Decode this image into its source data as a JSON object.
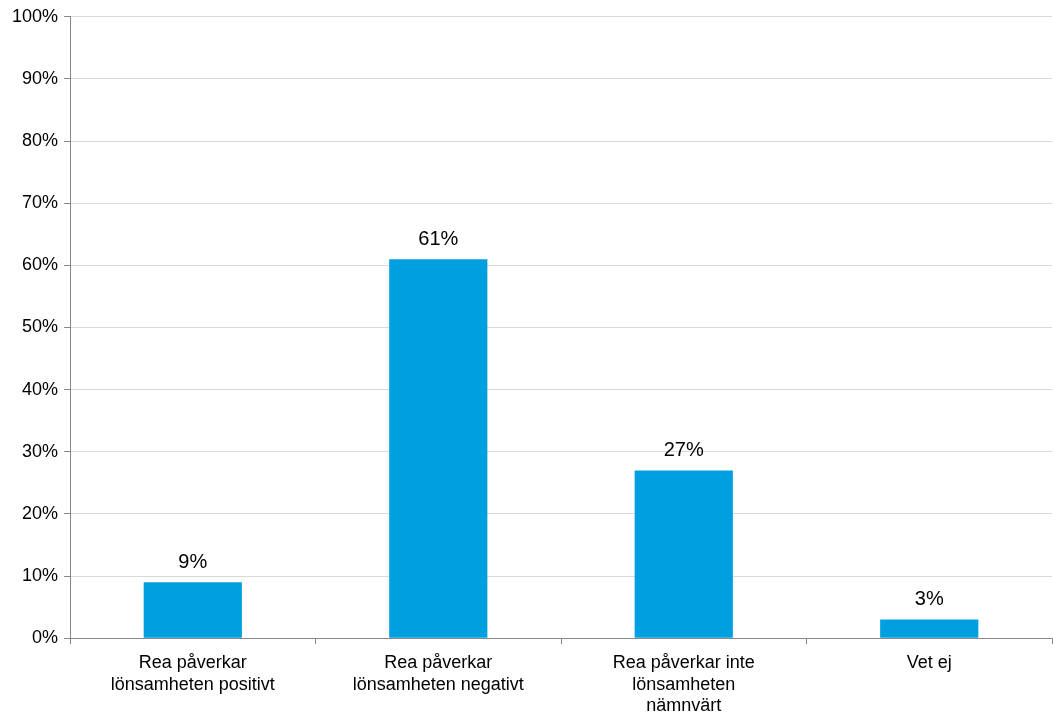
{
  "chart_data": {
    "type": "bar",
    "categories": [
      "Rea påverkar lönsamheten positivt",
      "Rea påverkar lönsamheten negativt",
      "Rea påverkar inte lönsamheten nämnvärt",
      "Vet ej"
    ],
    "values": [
      9,
      61,
      27,
      3
    ],
    "color": "#009fdf",
    "value_labels": [
      "9%",
      "61%",
      "27%",
      "3%"
    ],
    "ylim": [
      0,
      100
    ],
    "yticks": [
      {
        "value": 0,
        "label": "0%"
      },
      {
        "value": 10,
        "label": "10%"
      },
      {
        "value": 20,
        "label": "20%"
      },
      {
        "value": 30,
        "label": "30%"
      },
      {
        "value": 40,
        "label": "40%"
      },
      {
        "value": 50,
        "label": "50%"
      },
      {
        "value": 60,
        "label": "60%"
      },
      {
        "value": 70,
        "label": "70%"
      },
      {
        "value": 80,
        "label": "80%"
      },
      {
        "value": 90,
        "label": "90%"
      },
      {
        "value": 100,
        "label": "100%"
      }
    ],
    "grid": "y",
    "legend": false
  }
}
